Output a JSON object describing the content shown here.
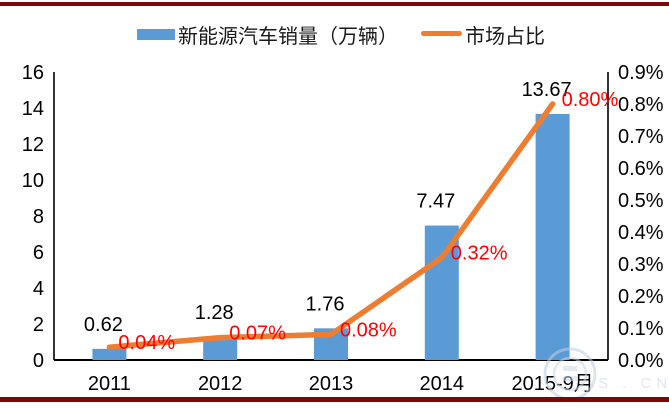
{
  "legend": {
    "items": [
      {
        "label": "新能源汽车销量（万辆）",
        "swatch": "bar-swatch"
      },
      {
        "label": "市场占比",
        "swatch": "line-swatch"
      }
    ]
  },
  "chart_data": {
    "type": "bar",
    "subtype": "combo-bar-line",
    "categories": [
      "2011",
      "2012",
      "2013",
      "2014",
      "2015-9月"
    ],
    "series": [
      {
        "name": "新能源汽车销量（万辆）",
        "type": "bar",
        "axis": "left",
        "color": "#5b9bd5",
        "values": [
          0.62,
          1.28,
          1.76,
          7.47,
          13.67
        ],
        "data_labels": [
          "0.62",
          "1.28",
          "1.76",
          "7.47",
          "13.67"
        ],
        "data_label_color": "#000000"
      },
      {
        "name": "市场占比",
        "type": "line",
        "axis": "right",
        "color": "#ed7d31",
        "values": [
          0.04,
          0.07,
          0.08,
          0.32,
          0.8
        ],
        "data_labels": [
          "0.04%",
          "0.07%",
          "0.08%",
          "0.32%",
          "0.80%"
        ],
        "data_label_color": "#ff0000"
      }
    ],
    "left_axis": {
      "min": 0,
      "max": 16,
      "step": 2,
      "ticks": [
        "0",
        "2",
        "4",
        "6",
        "8",
        "10",
        "12",
        "14",
        "16"
      ]
    },
    "right_axis": {
      "min": 0,
      "max": 0.9,
      "step": 0.1,
      "ticks": [
        "0.0%",
        "0.1%",
        "0.2%",
        "0.3%",
        "0.4%",
        "0.5%",
        "0.6%",
        "0.7%",
        "0.8%",
        "0.9%"
      ]
    },
    "grid": false,
    "legend_position": "top",
    "title": "",
    "xlabel": "",
    "ylabel": ""
  },
  "watermark": {
    "text_fragment": "S . CN"
  },
  "colors": {
    "bar": "#5b9bd5",
    "line": "#ed7d31",
    "value_label": "#000000",
    "percent_label": "#ff0000",
    "axis": "#000000",
    "frame_bar": "#7d0606",
    "watermark": "#bfcfdf"
  }
}
